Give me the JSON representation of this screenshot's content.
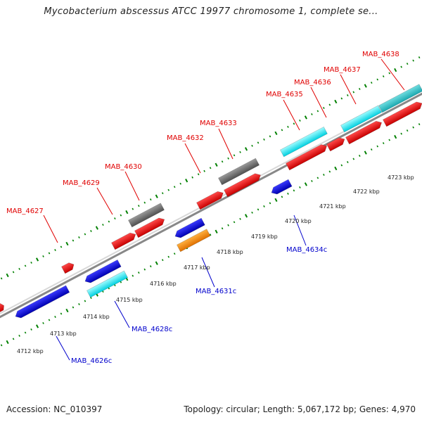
{
  "title": "Mycobacterium abscessus ATCC 19977 chromosome 1, complete se...",
  "footer": {
    "accession": "Accession: NC_010397",
    "summary": "Topology: circular; Length: 5,067,172 bp; Genes: 4,970"
  },
  "colors": {
    "forward_gene": "#e00000",
    "reverse_gene": "#0000cc",
    "rna_cyan": "#00e5ee",
    "grey_feature": "#666666",
    "orange_feature": "#ff8800",
    "tick_green": "#008000",
    "backbone": "#888888"
  },
  "kbp_ticks": [
    "4712 kbp",
    "4713 kbp",
    "4714 kbp",
    "4715 kbp",
    "4716 kbp",
    "4717 kbp",
    "4718 kbp",
    "4719 kbp",
    "4720 kbp",
    "4721 kbp",
    "4722 kbp",
    "4723 kbp"
  ],
  "forward_labels": [
    "MAB_4627",
    "MAB_4629",
    "MAB_4630",
    "MAB_4632",
    "MAB_4633",
    "MAB_4635",
    "MAB_4636",
    "MAB_4637",
    "MAB_4638"
  ],
  "reverse_labels": [
    "MAB_4626c",
    "MAB_4628c",
    "MAB_4631c",
    "MAB_4634c"
  ]
}
